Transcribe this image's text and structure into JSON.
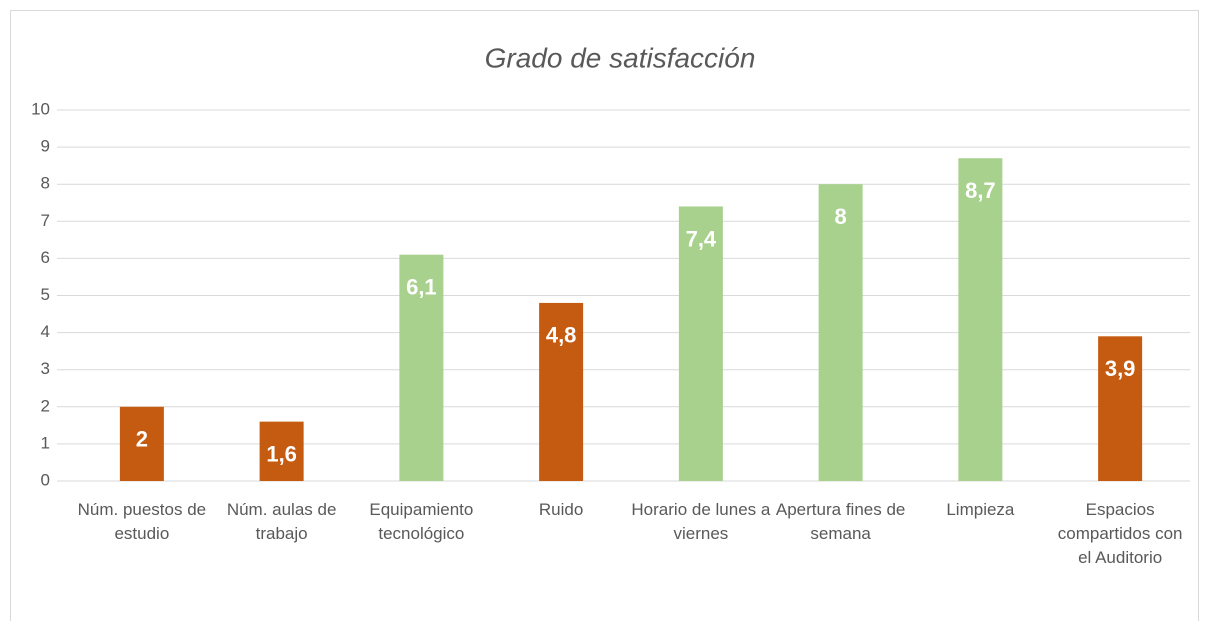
{
  "chart_data": {
    "type": "bar",
    "title": "Grado de satisfacción",
    "categories": [
      "Núm. puestos de estudio",
      "Núm. aulas de trabajo",
      "Equipamiento tecnológico",
      "Ruido",
      "Horario de lunes a viernes",
      "Apertura fines de semana",
      "Limpieza",
      "Espacios compartidos con el Auditorio"
    ],
    "values": [
      2,
      1.6,
      6.1,
      4.8,
      7.4,
      8,
      8.7,
      3.9
    ],
    "value_labels": [
      "2",
      "1,6",
      "6,1",
      "4,8",
      "7,4",
      "8",
      "8,7",
      "3,9"
    ],
    "colors": [
      "#c55a11",
      "#c55a11",
      "#a9d18e",
      "#c55a11",
      "#a9d18e",
      "#a9d18e",
      "#a9d18e",
      "#c55a11"
    ],
    "ylim": [
      0,
      10
    ],
    "yticks": [
      0,
      1,
      2,
      3,
      4,
      5,
      6,
      7,
      8,
      9,
      10
    ],
    "grid": true
  }
}
